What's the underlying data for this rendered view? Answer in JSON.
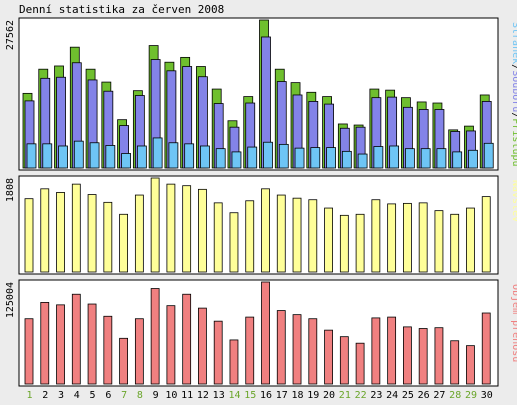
{
  "title": "Denní statistika za červen 2008",
  "colors": {
    "background": "#ececec",
    "panel_bg": "#ffffff",
    "pristupu": "#6fbf2e",
    "souboru": "#8383e8",
    "stranek": "#6ec5f5",
    "navstev": "#ffff99",
    "objem": "#f08080",
    "weekend_day": "#6aa52a",
    "weekday": "#000000"
  },
  "chart_data": [
    {
      "type": "bar",
      "name": "traffic",
      "categories": [
        "1",
        "2",
        "3",
        "4",
        "5",
        "6",
        "7",
        "8",
        "9",
        "10",
        "11",
        "12",
        "13",
        "14",
        "15",
        "16",
        "17",
        "18",
        "19",
        "20",
        "21",
        "22",
        "23",
        "24",
        "25",
        "26",
        "27",
        "28",
        "29",
        "30"
      ],
      "weekend_days": [
        "1",
        "7",
        "8",
        "14",
        "15",
        "21",
        "22",
        "28",
        "29"
      ],
      "ymax_label": "27562",
      "ylim": [
        0,
        27562
      ],
      "legend": [
        "Stránek",
        "/",
        "Souborů",
        "/",
        "Přístupů"
      ],
      "series": [
        {
          "name": "Přístupů",
          "values": [
            13900,
            18400,
            19000,
            22500,
            18400,
            16000,
            9000,
            14400,
            22800,
            19700,
            20600,
            18900,
            14700,
            8800,
            13300,
            27562,
            18400,
            15900,
            14100,
            13300,
            8200,
            8000,
            14700,
            14500,
            13100,
            12300,
            12100,
            7100,
            7800,
            13600
          ]
        },
        {
          "name": "Souborů",
          "values": [
            12500,
            16700,
            16900,
            19600,
            16400,
            14300,
            7900,
            13500,
            20200,
            18100,
            18900,
            17000,
            12000,
            7600,
            12100,
            24400,
            16100,
            13600,
            12400,
            11900,
            7400,
            7600,
            13100,
            13200,
            11300,
            10900,
            10900,
            6800,
            6900,
            12400
          ]
        },
        {
          "name": "Stránek",
          "values": [
            4500,
            4500,
            4100,
            5000,
            4700,
            4200,
            2700,
            4100,
            5600,
            4700,
            4500,
            4100,
            3600,
            3000,
            3900,
            4800,
            4400,
            3700,
            3800,
            3800,
            3100,
            2600,
            4000,
            4100,
            3600,
            3600,
            3600,
            3000,
            3300,
            4600
          ]
        }
      ]
    },
    {
      "type": "bar",
      "name": "navstev",
      "categories": [
        "1",
        "2",
        "3",
        "4",
        "5",
        "6",
        "7",
        "8",
        "9",
        "10",
        "11",
        "12",
        "13",
        "14",
        "15",
        "16",
        "17",
        "18",
        "19",
        "20",
        "21",
        "22",
        "23",
        "24",
        "25",
        "26",
        "27",
        "28",
        "29",
        "30"
      ],
      "ymax_label": "1808",
      "ylim": [
        0,
        1808
      ],
      "legend": [
        "Návštěv"
      ],
      "series": [
        {
          "name": "Návštěv",
          "values": [
            1410,
            1600,
            1530,
            1690,
            1490,
            1340,
            1110,
            1480,
            1808,
            1690,
            1660,
            1590,
            1330,
            1140,
            1370,
            1600,
            1480,
            1420,
            1390,
            1230,
            1090,
            1110,
            1390,
            1310,
            1320,
            1330,
            1180,
            1110,
            1230,
            1450
          ]
        }
      ]
    },
    {
      "type": "bar",
      "name": "objem",
      "categories": [
        "1",
        "2",
        "3",
        "4",
        "5",
        "6",
        "7",
        "8",
        "9",
        "10",
        "11",
        "12",
        "13",
        "14",
        "15",
        "16",
        "17",
        "18",
        "19",
        "20",
        "21",
        "22",
        "23",
        "24",
        "25",
        "26",
        "27",
        "28",
        "29",
        "30"
      ],
      "ymax_label": "125004",
      "ylim": [
        0,
        125004
      ],
      "legend": [
        "Objem přenosu"
      ],
      "series": [
        {
          "name": "Objem přenosu",
          "values": [
            80000,
            100000,
            97000,
            110000,
            98000,
            83000,
            56000,
            80000,
            117000,
            96000,
            110000,
            93000,
            77000,
            54000,
            82000,
            125004,
            90000,
            85000,
            80000,
            66000,
            58000,
            50000,
            81000,
            82000,
            70000,
            68000,
            69000,
            53000,
            47000,
            87000
          ]
        }
      ]
    }
  ]
}
